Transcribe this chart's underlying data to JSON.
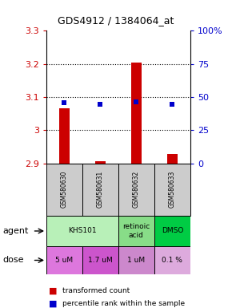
{
  "title": "GDS4912 / 1384064_at",
  "ylim": [
    2.9,
    3.3
  ],
  "yticks": [
    2.9,
    3.0,
    3.1,
    3.2,
    3.3
  ],
  "ytick_labels": [
    "2.9",
    "3",
    "3.1",
    "3.2",
    "3.3"
  ],
  "y2ticks": [
    0,
    25,
    50,
    75,
    100
  ],
  "y2tick_labels": [
    "0",
    "25",
    "50",
    "75",
    "100%"
  ],
  "sample_ids": [
    "GSM580630",
    "GSM580631",
    "GSM580632",
    "GSM580633"
  ],
  "red_values": [
    3.065,
    2.906,
    3.205,
    2.928
  ],
  "blue_values": [
    3.083,
    3.079,
    3.086,
    3.079
  ],
  "baseline": 2.9,
  "bar_color": "#cc0000",
  "dot_color": "#0000cc",
  "sample_bg": "#cccccc",
  "agent_groups": [
    {
      "cols": [
        0,
        1
      ],
      "text": "KHS101",
      "color": "#b8f0b8"
    },
    {
      "cols": [
        2
      ],
      "text": "retinoic\nacid",
      "color": "#88dd88"
    },
    {
      "cols": [
        3
      ],
      "text": "DMSO",
      "color": "#00cc44"
    }
  ],
  "dose_labels": [
    "5 uM",
    "1.7 uM",
    "1 uM",
    "0.1 %"
  ],
  "dose_colors": [
    "#dd77dd",
    "#cc55cc",
    "#cc88cc",
    "#ddaadd"
  ]
}
